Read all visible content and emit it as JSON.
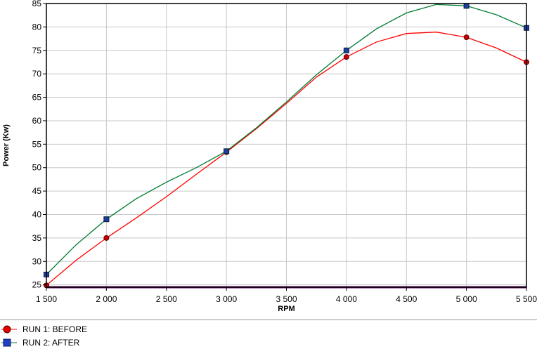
{
  "chart_data": {
    "type": "line",
    "xlabel": "RPM",
    "ylabel": "Power (Kw)",
    "xlim": [
      1500,
      5500
    ],
    "ylim": [
      24.5,
      85
    ],
    "x_ticks": [
      1500,
      2000,
      2500,
      3000,
      3500,
      4000,
      4500,
      5000,
      5500
    ],
    "x_tick_labels": [
      "1 500",
      "2 000",
      "2 500",
      "3 000",
      "3 500",
      "4 000",
      "4 500",
      "5 000",
      "5 500"
    ],
    "y_ticks": [
      25,
      30,
      35,
      40,
      45,
      50,
      55,
      60,
      65,
      70,
      75,
      80,
      85
    ],
    "y_tick_labels": [
      "25",
      "30",
      "35",
      "40",
      "45",
      "50",
      "55",
      "60",
      "65",
      "70",
      "75",
      "80",
      "85"
    ],
    "grid": true,
    "legend_position": "bottom-left",
    "series": [
      {
        "name": "RUN 1: BEFORE",
        "color": "#ff0000",
        "marker_color": "#cc0000",
        "marker": "circle",
        "x": [
          1500,
          2000,
          3000,
          4000,
          5000,
          5500
        ],
        "values": [
          24.9,
          35.0,
          53.3,
          73.6,
          77.8,
          72.5
        ],
        "curve_x": [
          1500,
          1750,
          2000,
          2250,
          2500,
          2750,
          3000,
          3250,
          3500,
          3750,
          4000,
          4250,
          4500,
          4750,
          5000,
          5250,
          5500
        ],
        "curve_y": [
          24.9,
          30.3,
          35.0,
          39.3,
          43.8,
          48.6,
          53.3,
          58.3,
          63.7,
          69.3,
          73.6,
          76.8,
          78.6,
          78.9,
          77.8,
          75.5,
          72.5
        ]
      },
      {
        "name": "RUN 2: AFTER",
        "color": "#007a33",
        "marker_color": "#1f3fa0",
        "marker": "square",
        "x": [
          1500,
          2000,
          3000,
          4000,
          5000,
          5500
        ],
        "values": [
          27.2,
          39.0,
          53.5,
          75.0,
          84.5,
          79.8
        ],
        "curve_x": [
          1500,
          1750,
          2000,
          2250,
          2500,
          2750,
          3000,
          3250,
          3500,
          3750,
          4000,
          4250,
          4500,
          4750,
          5000,
          5250,
          5500
        ],
        "curve_y": [
          27.2,
          33.6,
          39.0,
          43.4,
          46.9,
          50.0,
          53.5,
          58.5,
          64.0,
          69.8,
          75.0,
          79.6,
          83.0,
          84.8,
          84.5,
          82.6,
          79.8
        ]
      }
    ],
    "baseline_color": "#660066"
  }
}
